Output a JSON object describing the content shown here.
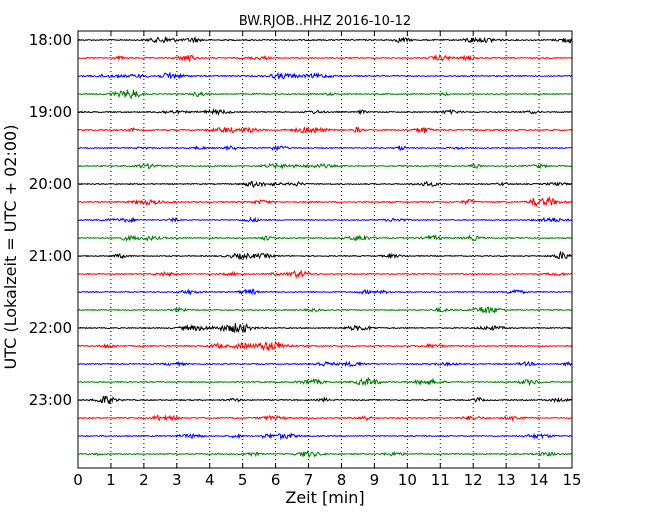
{
  "chart_data": {
    "type": "line",
    "title": "BW.RJOB..HHZ 2016-10-12",
    "xlabel": "Zeit  [min]",
    "ylabel": "UTC (Lokalzeit = UTC + 02:00)",
    "xlim": [
      0,
      15
    ],
    "x_ticks": [
      0,
      1,
      2,
      3,
      4,
      5,
      6,
      7,
      8,
      9,
      10,
      11,
      12,
      13,
      14,
      15
    ],
    "y_tick_labels": [
      "18:00",
      "19:00",
      "20:00",
      "21:00",
      "22:00",
      "23:00"
    ],
    "grid": "vertical dotted",
    "trace_colors": [
      "#000000",
      "#ff0000",
      "#0000ff",
      "#008000"
    ],
    "series": [
      {
        "start": "18:00",
        "amplitude": 0.3
      },
      {
        "start": "18:15",
        "amplitude": 0.25
      },
      {
        "start": "18:30",
        "amplitude": 0.28
      },
      {
        "start": "18:45",
        "amplitude": 0.24
      },
      {
        "start": "19:00",
        "amplitude": 0.26
      },
      {
        "start": "19:15",
        "amplitude": 0.3
      },
      {
        "start": "19:30",
        "amplitude": 0.24
      },
      {
        "start": "19:45",
        "amplitude": 0.25
      },
      {
        "start": "20:00",
        "amplitude": 0.26
      },
      {
        "start": "20:15",
        "amplitude": 0.28
      },
      {
        "start": "20:30",
        "amplitude": 0.22
      },
      {
        "start": "20:45",
        "amplitude": 0.27
      },
      {
        "start": "21:00",
        "amplitude": 0.25
      },
      {
        "start": "21:15",
        "amplitude": 0.24
      },
      {
        "start": "21:30",
        "amplitude": 0.23
      },
      {
        "start": "21:45",
        "amplitude": 0.24
      },
      {
        "start": "22:00",
        "amplitude": 0.26
      },
      {
        "start": "22:15",
        "amplitude": 0.27
      },
      {
        "start": "22:30",
        "amplitude": 0.23
      },
      {
        "start": "22:45",
        "amplitude": 0.25
      },
      {
        "start": "23:00",
        "amplitude": 0.27
      },
      {
        "start": "23:15",
        "amplitude": 0.26
      },
      {
        "start": "23:30",
        "amplitude": 0.25
      },
      {
        "start": "23:45",
        "amplitude": 0.24
      }
    ]
  }
}
